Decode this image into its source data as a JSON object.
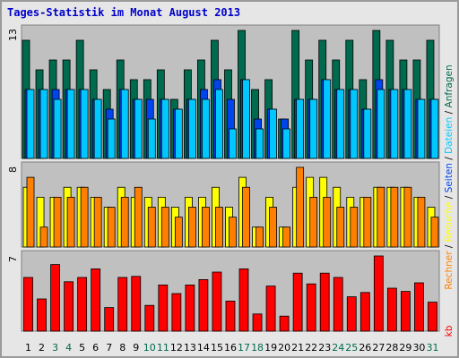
{
  "title": "Tages-Statistik im Monat August 2013",
  "colors": {
    "frame_border": "#9a9a9a",
    "background": "#e6e6e6",
    "plot_bg": "#c0c0c0",
    "anfragen": "#006a4e",
    "dateien": "#00c8ff",
    "seiten": "#0044ee",
    "besuche": "#ffff00",
    "rechner": "#ff8000",
    "kb": "#ff0000",
    "title": "#0000cc",
    "weekend_label": "#006a4e"
  },
  "chart_data": [
    {
      "type": "bar",
      "panel": "top",
      "scale_max_label": "13",
      "ylim": [
        0,
        13
      ],
      "categories": [
        "1",
        "2",
        "3",
        "4",
        "5",
        "6",
        "7",
        "8",
        "9",
        "10",
        "11",
        "12",
        "13",
        "14",
        "15",
        "16",
        "17",
        "18",
        "19",
        "20",
        "21",
        "22",
        "23",
        "24",
        "25",
        "26",
        "27",
        "28",
        "29",
        "30",
        "31"
      ],
      "series": [
        {
          "name": "Anfragen",
          "values": [
            12,
            9,
            10,
            10,
            12,
            9,
            7,
            10,
            8,
            8,
            9,
            6,
            9,
            10,
            12,
            9,
            13,
            7,
            8,
            4,
            13,
            10,
            12,
            10,
            12,
            8,
            13,
            12,
            10,
            10,
            12
          ]
        },
        {
          "name": "Seiten",
          "values": [
            7,
            7,
            7,
            7,
            7,
            6,
            5,
            7,
            6,
            6,
            6,
            5,
            6,
            7,
            8,
            6,
            8,
            4,
            5,
            4,
            6,
            6,
            8,
            7,
            7,
            5,
            8,
            7,
            7,
            6,
            6
          ]
        },
        {
          "name": "Dateien",
          "values": [
            7,
            7,
            6,
            7,
            7,
            6,
            4,
            7,
            6,
            4,
            6,
            5,
            6,
            6,
            7,
            3,
            8,
            3,
            5,
            3,
            6,
            6,
            8,
            7,
            7,
            5,
            7,
            7,
            7,
            6,
            6
          ]
        }
      ],
      "right_legend": [
        "Anfragen",
        "Dateien",
        "Seiten"
      ]
    },
    {
      "type": "bar",
      "panel": "middle",
      "scale_max_label": "8",
      "ylim": [
        0,
        8
      ],
      "categories": [
        "1",
        "2",
        "3",
        "4",
        "5",
        "6",
        "7",
        "8",
        "9",
        "10",
        "11",
        "12",
        "13",
        "14",
        "15",
        "16",
        "17",
        "18",
        "19",
        "20",
        "21",
        "22",
        "23",
        "24",
        "25",
        "26",
        "27",
        "28",
        "29",
        "30",
        "31"
      ],
      "series": [
        {
          "name": "Besuche",
          "values": [
            6,
            5,
            5,
            6,
            6,
            5,
            4,
            6,
            5,
            5,
            5,
            4,
            5,
            5,
            6,
            4,
            7,
            2,
            5,
            2,
            6,
            7,
            7,
            6,
            5,
            5,
            6,
            6,
            6,
            5,
            4
          ]
        },
        {
          "name": "Rechner",
          "values": [
            7,
            2,
            5,
            5,
            6,
            5,
            4,
            5,
            6,
            4,
            4,
            3,
            4,
            4,
            4,
            3,
            6,
            2,
            4,
            2,
            8,
            5,
            5,
            4,
            4,
            5,
            6,
            6,
            6,
            5,
            3
          ]
        }
      ],
      "right_legend": [
        "Rechner",
        "Besuche"
      ]
    },
    {
      "type": "bar",
      "panel": "bottom",
      "scale_max_label": "7",
      "ylim": [
        0,
        7
      ],
      "categories": [
        "1",
        "2",
        "3",
        "4",
        "5",
        "6",
        "7",
        "8",
        "9",
        "10",
        "11",
        "12",
        "13",
        "14",
        "15",
        "16",
        "17",
        "18",
        "19",
        "20",
        "21",
        "22",
        "23",
        "24",
        "25",
        "26",
        "27",
        "28",
        "29",
        "30",
        "31"
      ],
      "series": [
        {
          "name": "kb",
          "values": [
            5.0,
            3.0,
            6.2,
            4.6,
            5.0,
            5.8,
            2.2,
            5.0,
            5.1,
            2.4,
            4.3,
            3.5,
            4.3,
            4.8,
            5.5,
            2.8,
            5.8,
            1.6,
            4.2,
            1.4,
            5.4,
            4.4,
            5.4,
            5.0,
            3.2,
            3.6,
            7.0,
            4.0,
            3.7,
            4.5,
            2.7
          ]
        }
      ],
      "right_legend": [
        "kb"
      ]
    }
  ],
  "weekend_days": [
    3,
    4,
    10,
    11,
    17,
    18,
    24,
    25,
    31
  ]
}
